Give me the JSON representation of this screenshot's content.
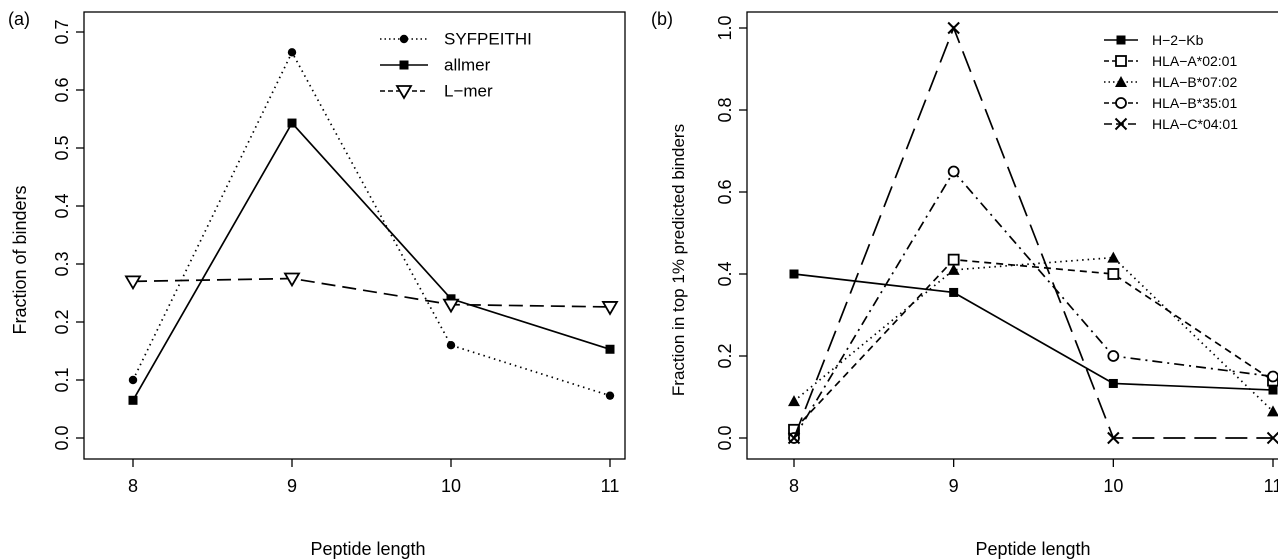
{
  "chart_data": [
    {
      "panel": "(a)",
      "type": "line",
      "xlabel": "Peptide length",
      "ylabel": "Fraction of binders",
      "x": [
        8,
        9,
        10,
        11
      ],
      "xlim": [
        8,
        11
      ],
      "ylim": [
        0.0,
        0.7
      ],
      "xticks": [
        "8",
        "9",
        "10",
        "11"
      ],
      "yticks": [
        "0.0",
        "0.1",
        "0.2",
        "0.3",
        "0.4",
        "0.5",
        "0.6",
        "0.7"
      ],
      "grid": false,
      "legend_position": "top-right",
      "series": [
        {
          "name": "SYFPEITHI",
          "marker": "filled-circle",
          "line": "dotted",
          "values": [
            0.1,
            0.665,
            0.16,
            0.073
          ]
        },
        {
          "name": "allmer",
          "marker": "filled-square",
          "line": "solid",
          "values": [
            0.065,
            0.543,
            0.24,
            0.153
          ]
        },
        {
          "name": "L−mer",
          "marker": "open-triangle-down",
          "line": "dashed",
          "values": [
            0.27,
            0.275,
            0.23,
            0.226
          ]
        }
      ]
    },
    {
      "panel": "(b)",
      "type": "line",
      "xlabel": "Peptide length",
      "ylabel": "Fraction in top 1% predicted binders",
      "x": [
        8,
        9,
        10,
        11
      ],
      "xlim": [
        8,
        11
      ],
      "ylim": [
        0.0,
        1.0
      ],
      "xticks": [
        "8",
        "9",
        "10",
        "11"
      ],
      "yticks": [
        "0.0",
        "0.2",
        "0.4",
        "0.6",
        "0.8",
        "1.0"
      ],
      "grid": false,
      "legend_position": "top-right",
      "series": [
        {
          "name": "H−2−Kb",
          "marker": "filled-square",
          "line": "solid",
          "values": [
            0.4,
            0.355,
            0.133,
            0.117
          ]
        },
        {
          "name": "HLA−A*02:01",
          "marker": "open-square",
          "line": "dashed-short",
          "values": [
            0.02,
            0.435,
            0.4,
            0.14
          ]
        },
        {
          "name": "HLA−B*07:02",
          "marker": "filled-triangle",
          "line": "dotted",
          "values": [
            0.09,
            0.41,
            0.44,
            0.065
          ]
        },
        {
          "name": "HLA−B*35:01",
          "marker": "open-circle",
          "line": "dash-dot",
          "values": [
            0.0,
            0.65,
            0.2,
            0.15
          ]
        },
        {
          "name": "HLA−C*04:01",
          "marker": "cross",
          "line": "dashed-long",
          "values": [
            0.0,
            1.0,
            0.0,
            0.0
          ]
        }
      ]
    }
  ]
}
